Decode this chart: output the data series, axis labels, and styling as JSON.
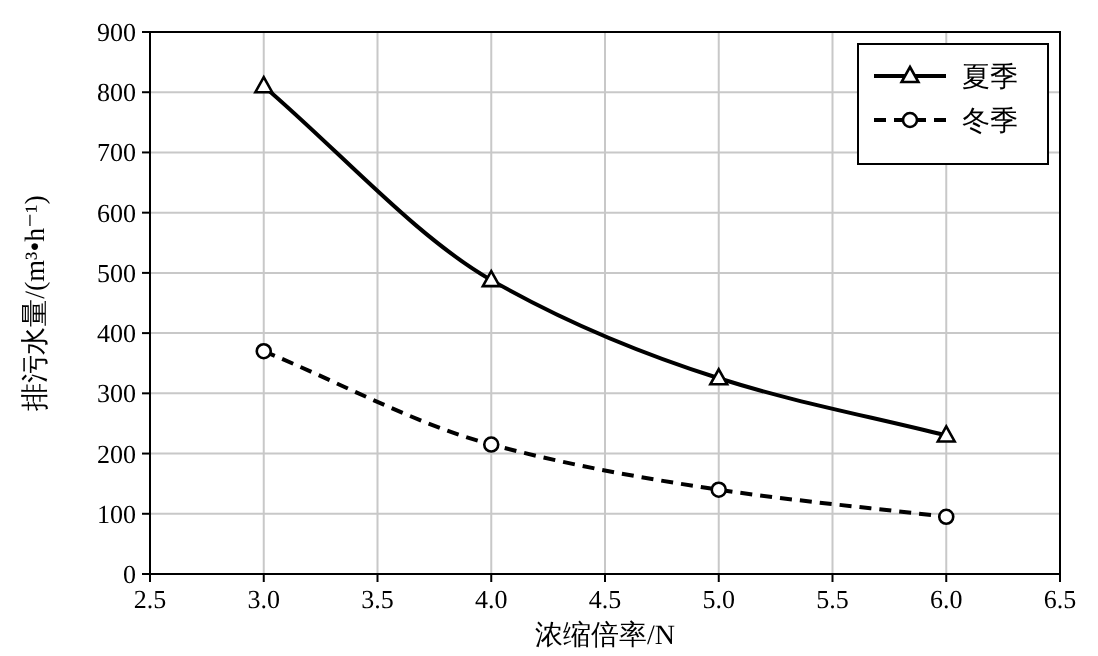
{
  "chart_data": {
    "type": "line",
    "xlabel": "浓缩倍率/N",
    "ylabel": "排污水量/(m³•h⁻¹)",
    "x": [
      3.0,
      4.0,
      5.0,
      6.0
    ],
    "series": [
      {
        "name": "夏季",
        "color": "#000000",
        "values": [
          810,
          488,
          325,
          230
        ],
        "marker": "triangle",
        "line_style": "solid"
      },
      {
        "name": "冬季",
        "color": "#000000",
        "values": [
          370,
          215,
          140,
          95
        ],
        "marker": "circle",
        "line_style": "dashed"
      }
    ],
    "xlim": [
      2.5,
      6.5
    ],
    "xticks": [
      {
        "value": 2.5,
        "label": "2.5"
      },
      {
        "value": 3,
        "label": "3.0"
      },
      {
        "value": 3.5,
        "label": "3.5"
      },
      {
        "value": 4,
        "label": "4.0"
      },
      {
        "value": 4.5,
        "label": "4.5"
      },
      {
        "value": 5,
        "label": "5.0"
      },
      {
        "value": 5.5,
        "label": "5.5"
      },
      {
        "value": 6,
        "label": "6.0"
      },
      {
        "value": 6.5,
        "label": "6.5"
      }
    ],
    "ylim": [
      0,
      900
    ],
    "yticks": [
      0,
      100,
      200,
      300,
      400,
      500,
      600,
      700,
      800,
      900
    ],
    "grid": true,
    "legend": "top right"
  }
}
